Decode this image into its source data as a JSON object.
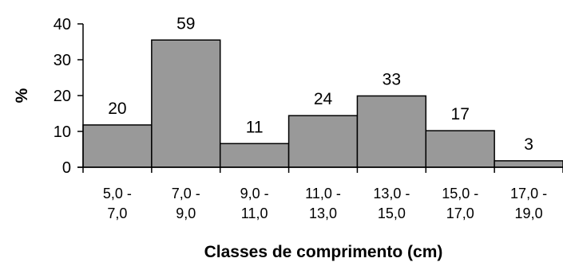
{
  "chart_data": {
    "type": "bar",
    "title": "",
    "xlabel": "Classes de comprimento (cm)",
    "ylabel": "%",
    "ylim": [
      0,
      40
    ],
    "yticks": [
      "0",
      "10",
      "20",
      "30",
      "40"
    ],
    "grid": false,
    "legend": "none",
    "categories": [
      [
        "5,0 -",
        "7,0"
      ],
      [
        "7,0 -",
        "9,0"
      ],
      [
        "9,0 -",
        "11,0"
      ],
      [
        "11,0 -",
        "13,0"
      ],
      [
        "13,0 -",
        "15,0"
      ],
      [
        "15,0 -",
        "17,0"
      ],
      [
        "17,0 -",
        "19,0"
      ]
    ],
    "values": [
      11.8,
      35.5,
      6.6,
      14.4,
      19.9,
      10.2,
      1.8
    ],
    "data_labels": [
      "20",
      "59",
      "11",
      "24",
      "33",
      "17",
      "3"
    ],
    "colors": {
      "bar_fill": "#999999",
      "bar_stroke": "#000000",
      "axis": "#000000"
    }
  }
}
